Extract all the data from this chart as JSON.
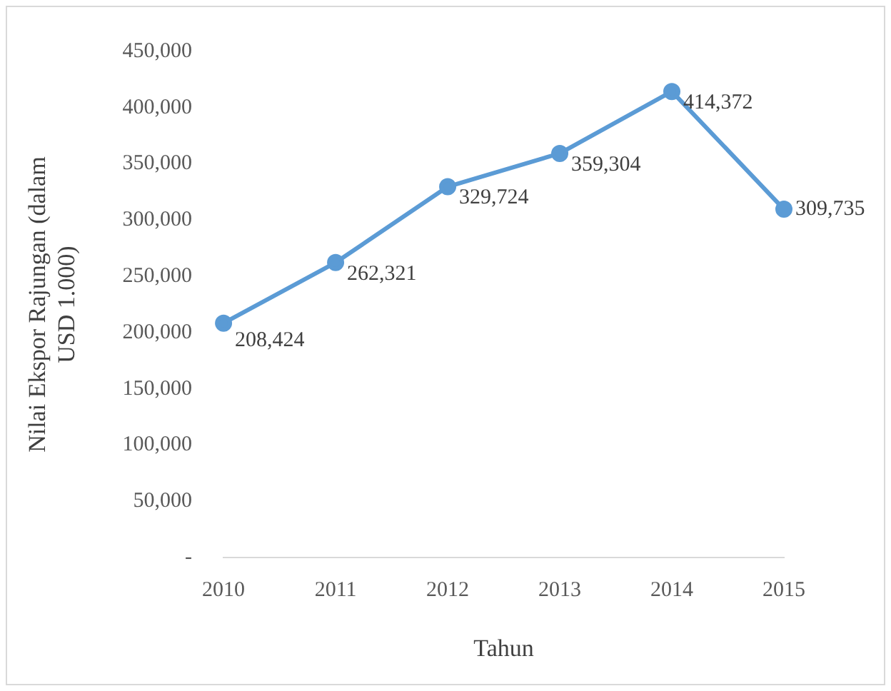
{
  "chart_data": {
    "type": "line",
    "xlabel": "Tahun",
    "ylabel": "Nilai Ekspor Rajungan (dalam USD 1.000)",
    "categories": [
      "2010",
      "2011",
      "2012",
      "2013",
      "2014",
      "2015"
    ],
    "series": [
      {
        "color": "#5b9bd5",
        "values": [
          208424,
          262321,
          329724,
          359304,
          414372,
          309735
        ]
      }
    ],
    "value_labels": [
      "208,424",
      "262,321",
      "329,724",
      "359,304",
      "414,372",
      "309,735"
    ],
    "ylim": [
      0,
      450000
    ],
    "yticks": [
      {
        "value": 0,
        "label": "-"
      },
      {
        "value": 50000,
        "label": "50,000"
      },
      {
        "value": 100000,
        "label": "100,000"
      },
      {
        "value": 150000,
        "label": "150,000"
      },
      {
        "value": 200000,
        "label": "200,000"
      },
      {
        "value": 250000,
        "label": "250,000"
      },
      {
        "value": 300000,
        "label": "300,000"
      },
      {
        "value": 350000,
        "label": "350,000"
      },
      {
        "value": 400000,
        "label": "400,000"
      },
      {
        "value": 450000,
        "label": "450,000"
      }
    ],
    "grid": false,
    "legend": false,
    "marker": "circle",
    "line_style": "solid"
  }
}
